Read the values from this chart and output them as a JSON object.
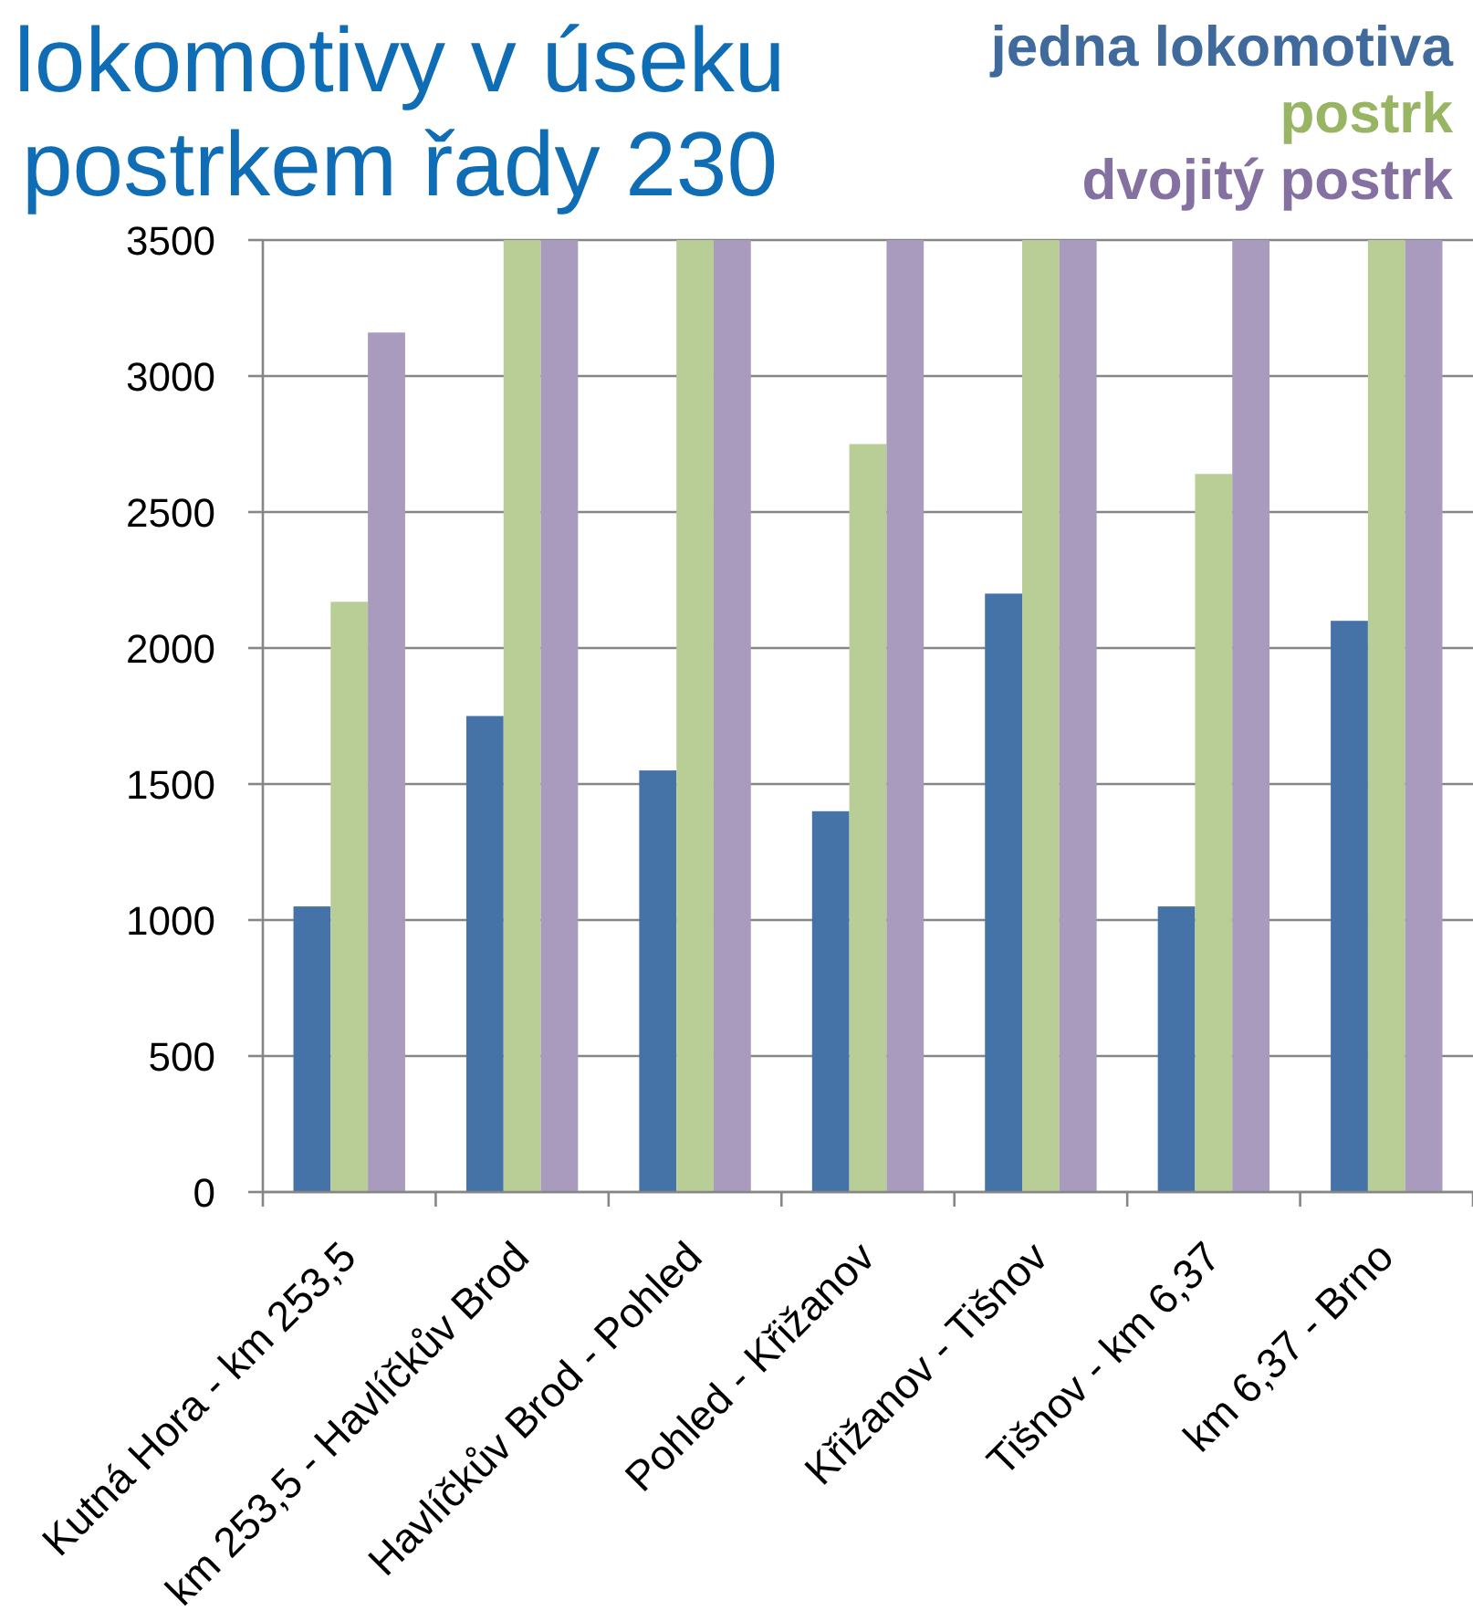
{
  "chart_data": {
    "type": "bar",
    "title": "lokomotivy v úseku postrkem řady 230",
    "categories": [
      "Kutná Hora - km 253,5",
      "km 253,5 - Havlíčkův Brod",
      "Havlíčkův Brod - Pohled",
      "Pohled - Křižanov",
      "Křižanov - Tišnov",
      "Tišnov - km 6,37",
      "km 6,37 - Brno"
    ],
    "series": [
      {
        "name": "jedna lokomotiva",
        "color": "#4572a7",
        "values": [
          1050,
          1750,
          1550,
          1400,
          2200,
          1050,
          2100
        ]
      },
      {
        "name": "postrk",
        "color": "#b9cd96",
        "values": [
          2170,
          3500,
          3500,
          2750,
          3500,
          2640,
          3500
        ]
      },
      {
        "name": "dvojitý postrk",
        "color": "#a99bbd",
        "values": [
          3160,
          3500,
          3500,
          3500,
          3500,
          3500,
          3500
        ]
      }
    ],
    "ylim": [
      0,
      3500
    ],
    "yticks": [
      0,
      500,
      1000,
      1500,
      2000,
      2500,
      3000,
      3500
    ],
    "grid": "y",
    "legend": "top right"
  }
}
